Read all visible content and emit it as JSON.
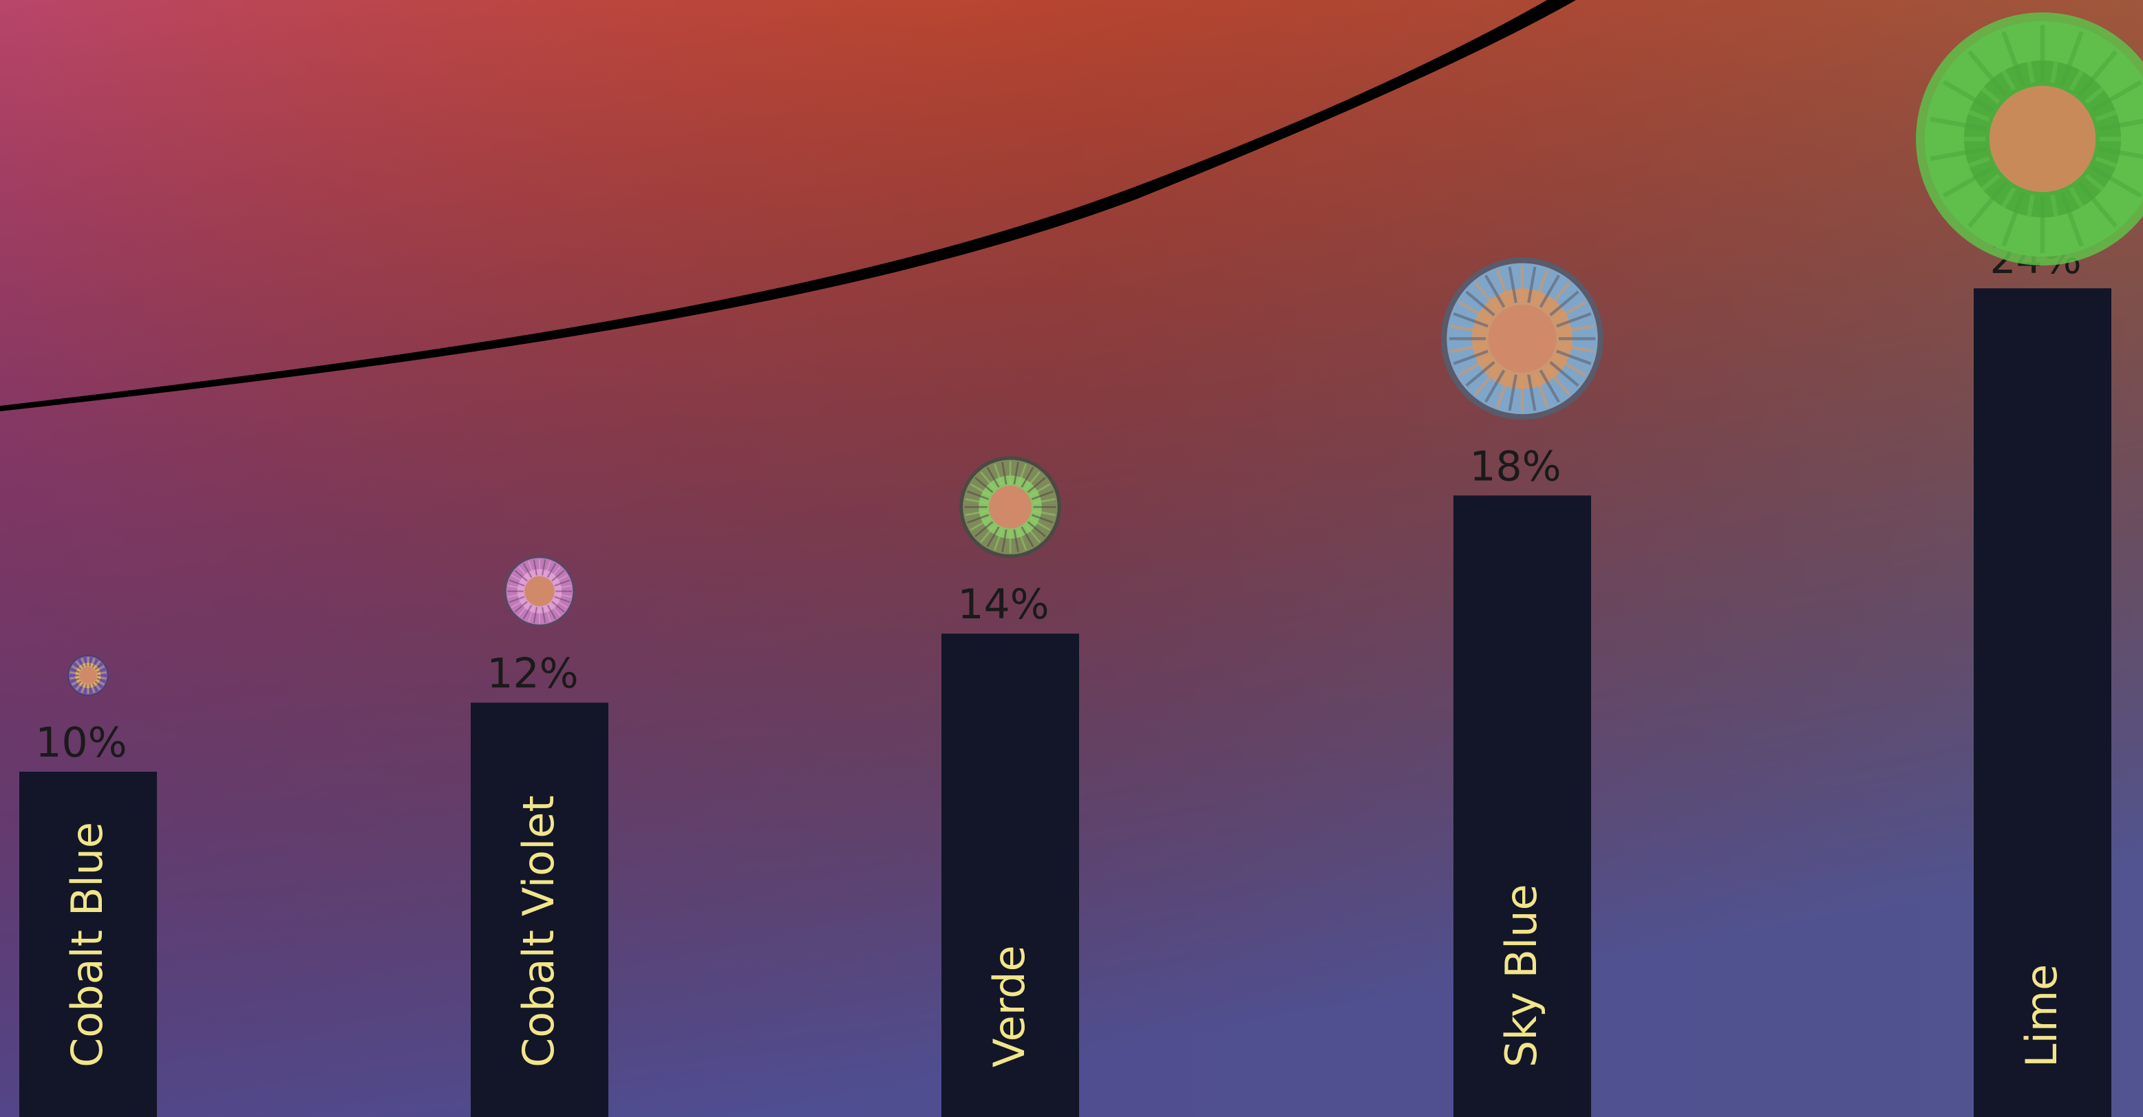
{
  "colors": {
    "bar": "#121628",
    "label_on_bar": "#f2e58a",
    "value_label": "#1a1a1a",
    "curve": "#000000",
    "bg_top_left": "#b24378",
    "bg_top_mid": "#c9483e",
    "bg_top_right": "#d27040",
    "bg_bottom_left": "#7a4a8a",
    "bg_bottom_right": "#2e5e9e"
  },
  "chart_data": {
    "type": "bar",
    "categories": [
      "Cobalt Blue",
      "Cobalt Violet",
      "Verde",
      "Sky Blue",
      "Lime"
    ],
    "values": [
      10,
      12,
      14,
      18,
      24
    ],
    "value_labels": [
      "10%",
      "12%",
      "14%",
      "18%",
      "24%"
    ],
    "unit": "%",
    "ylim": [
      0,
      26
    ],
    "grid": false,
    "legend": "none",
    "icons": [
      "cobalt-blue-lens-icon",
      "cobalt-violet-lens-icon",
      "verde-lens-icon",
      "sky-blue-lens-icon",
      "lime-lens-icon"
    ],
    "icon_colors": [
      {
        "iris": "#7a5fb0",
        "accent": "#e8b65a",
        "ring": "#4a3f6a"
      },
      {
        "iris": "#c07ab8",
        "accent": "#e6a5d8",
        "ring": "#5a4660"
      },
      {
        "iris": "#7f8a5a",
        "accent": "#8fd06a",
        "ring": "#4a4a44"
      },
      {
        "iris": "#7fa6c8",
        "accent": "#e0955a",
        "ring": "#5a5a6a"
      },
      {
        "iris": "#5fbf4a",
        "accent": "#4aa83a",
        "ring": "#5fbf4a"
      }
    ]
  }
}
